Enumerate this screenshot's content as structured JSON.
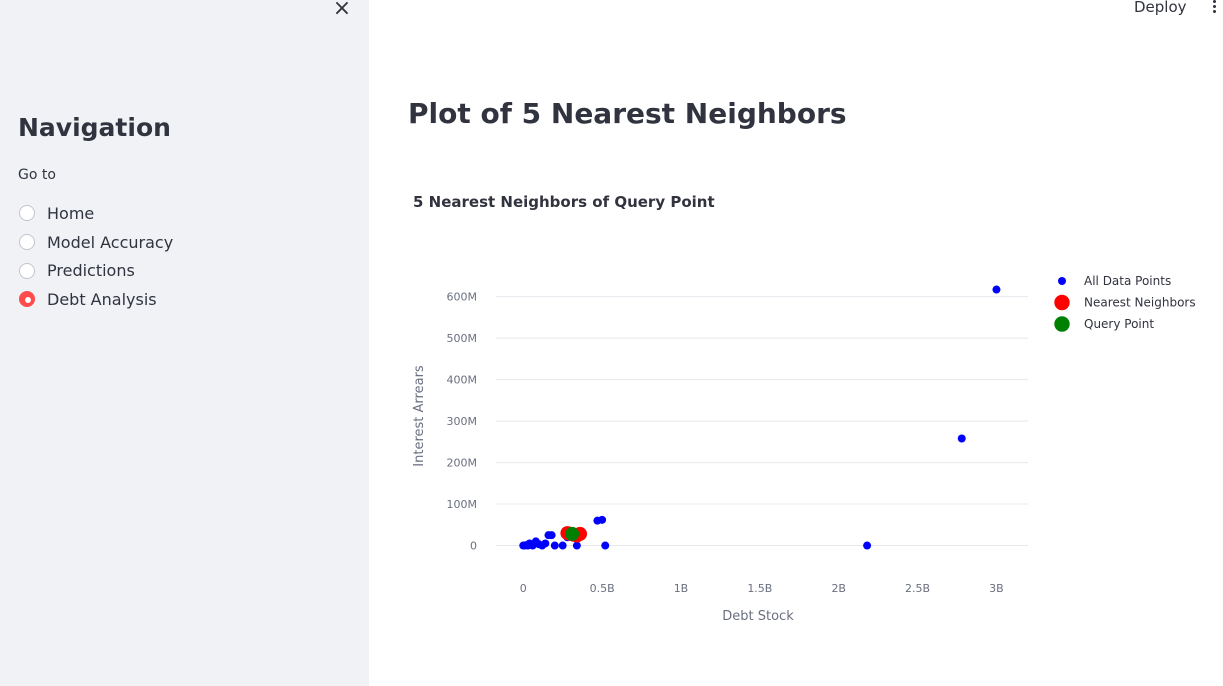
{
  "sidebar": {
    "close_symbol": "×",
    "title": "Navigation",
    "radio_label": "Go to",
    "options": [
      {
        "label": "Home",
        "selected": false
      },
      {
        "label": "Model Accuracy",
        "selected": false
      },
      {
        "label": "Predictions",
        "selected": false
      },
      {
        "label": "Debt Analysis",
        "selected": true
      }
    ],
    "accent_color": "#ff4b4b"
  },
  "header": {
    "deploy_label": "Deploy",
    "menu_icon": "kebab-menu-icon"
  },
  "main": {
    "title": "Plot of 5 Nearest Neighbors"
  },
  "chart_data": {
    "type": "scatter",
    "title": "5 Nearest Neighbors of Query Point",
    "xlabel": "Debt Stock",
    "ylabel": "Interest Arrears",
    "xlim": [
      -160000000.0,
      3200000000.0
    ],
    "ylim": [
      -30000000.0,
      640000000.0
    ],
    "xticks": [
      {
        "value": 0,
        "label": "0"
      },
      {
        "value": 500000000,
        "label": "0.5B"
      },
      {
        "value": 1000000000,
        "label": "1B"
      },
      {
        "value": 1500000000,
        "label": "1.5B"
      },
      {
        "value": 2000000000,
        "label": "2B"
      },
      {
        "value": 2500000000,
        "label": "2.5B"
      },
      {
        "value": 3000000000,
        "label": "3B"
      }
    ],
    "yticks": [
      {
        "value": 0,
        "label": "0"
      },
      {
        "value": 100000000,
        "label": "100M"
      },
      {
        "value": 200000000,
        "label": "200M"
      },
      {
        "value": 300000000,
        "label": "300M"
      },
      {
        "value": 400000000,
        "label": "400M"
      },
      {
        "value": 500000000,
        "label": "500M"
      },
      {
        "value": 600000000,
        "label": "600M"
      }
    ],
    "grid": true,
    "legend_position": "top-right",
    "series": [
      {
        "name": "All Data Points",
        "color": "#0000ff",
        "marker_size": 4,
        "points": [
          [
            0,
            0
          ],
          [
            10000000,
            0
          ],
          [
            20000000,
            1000000
          ],
          [
            30000000,
            0
          ],
          [
            40000000,
            5000000
          ],
          [
            50000000,
            2000000
          ],
          [
            60000000,
            0
          ],
          [
            80000000,
            10000000
          ],
          [
            100000000,
            3000000
          ],
          [
            120000000,
            0
          ],
          [
            140000000,
            5000000
          ],
          [
            160000000,
            25000000
          ],
          [
            180000000,
            25000000
          ],
          [
            200000000,
            0
          ],
          [
            250000000,
            0
          ],
          [
            280000000,
            20000000
          ],
          [
            340000000,
            0
          ],
          [
            470000000,
            60000000
          ],
          [
            500000000,
            62000000
          ],
          [
            520000000,
            0
          ],
          [
            2180000000,
            0
          ],
          [
            2780000000,
            258000000
          ],
          [
            3000000000,
            617000000
          ]
        ]
      },
      {
        "name": "Nearest Neighbors",
        "color": "#ff0000",
        "marker_size": 7,
        "points": [
          [
            280000000,
            30000000
          ],
          [
            300000000,
            28000000
          ],
          [
            320000000,
            26000000
          ],
          [
            340000000,
            24000000
          ],
          [
            360000000,
            28000000
          ]
        ]
      },
      {
        "name": "Query Point",
        "color": "#008000",
        "marker_size": 7,
        "points": [
          [
            310000000,
            28000000
          ]
        ]
      }
    ]
  }
}
